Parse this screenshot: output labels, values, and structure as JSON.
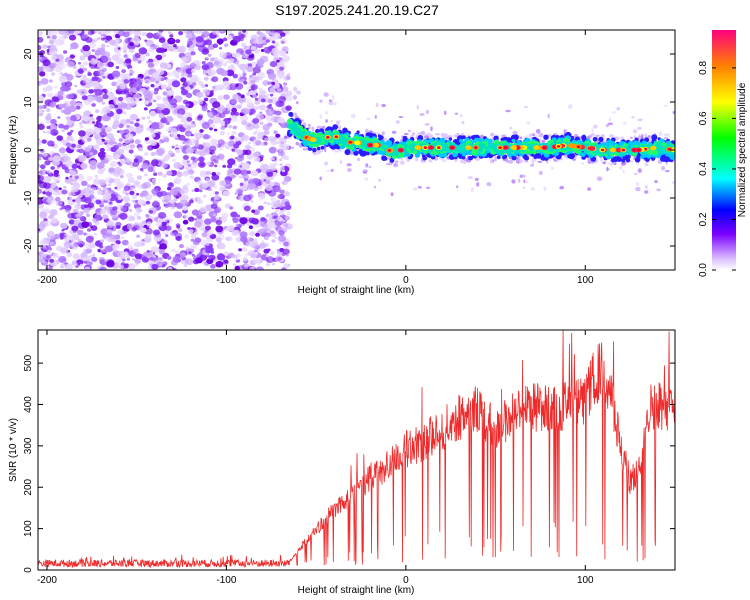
{
  "title": "S197.2025.241.20.19.C27",
  "chart_data": [
    {
      "type": "heatmap",
      "name": "spectrogram",
      "xlabel": "Height of straight line (km)",
      "ylabel": "Frequency (Hz)",
      "xlim": [
        -205,
        150
      ],
      "ylim": [
        -25,
        25
      ],
      "xticks": [
        -200,
        -100,
        0,
        100
      ],
      "yticks": [
        -20,
        -10,
        0,
        10,
        20
      ],
      "noise_region_x": [
        -205,
        -65
      ],
      "signal_track": {
        "x": [
          -65,
          -60,
          -55,
          -50,
          -45,
          -40,
          -35,
          -30,
          -25,
          -20,
          -15,
          -10,
          -5,
          0,
          5,
          10,
          15,
          20,
          30,
          40,
          50,
          60,
          70,
          80,
          90,
          100,
          110,
          120,
          130,
          140,
          150
        ],
        "y": [
          5.5,
          4,
          2.5,
          2,
          2.5,
          3,
          2,
          1.5,
          1.5,
          1,
          1,
          0,
          -0.5,
          0.5,
          0.5,
          0.5,
          0.5,
          0.5,
          0.5,
          0.5,
          0.5,
          0.5,
          0.5,
          0.5,
          1,
          0.5,
          0,
          0,
          0,
          0.5,
          0
        ]
      },
      "colorbar": {
        "label": "Normalized spectral amplitude",
        "range": [
          0,
          0.95
        ],
        "ticks": [
          "0.0",
          "0.2",
          "0.4",
          "0.6",
          "0.8"
        ]
      }
    },
    {
      "type": "line",
      "name": "snr",
      "xlabel": "Height of straight line (km)",
      "ylabel": "SNR (10 * v/v)",
      "xlim": [
        -205,
        150
      ],
      "ylim": [
        0,
        580
      ],
      "xticks": [
        -200,
        -100,
        0,
        100
      ],
      "yticks": [
        0,
        100,
        200,
        300,
        400,
        500
      ],
      "color": "#ee2a2a",
      "envelope": {
        "x": [
          -205,
          -65,
          -60,
          -50,
          -40,
          -30,
          -20,
          -10,
          0,
          10,
          20,
          30,
          40,
          50,
          60,
          70,
          80,
          90,
          100,
          105,
          110,
          115,
          120,
          125,
          130,
          135,
          140,
          145,
          150
        ],
        "y": [
          20,
          20,
          50,
          100,
          150,
          190,
          230,
          260,
          300,
          320,
          350,
          380,
          400,
          350,
          390,
          410,
          400,
          410,
          420,
          480,
          500,
          420,
          300,
          220,
          250,
          400,
          420,
          400,
          430
        ]
      }
    }
  ]
}
